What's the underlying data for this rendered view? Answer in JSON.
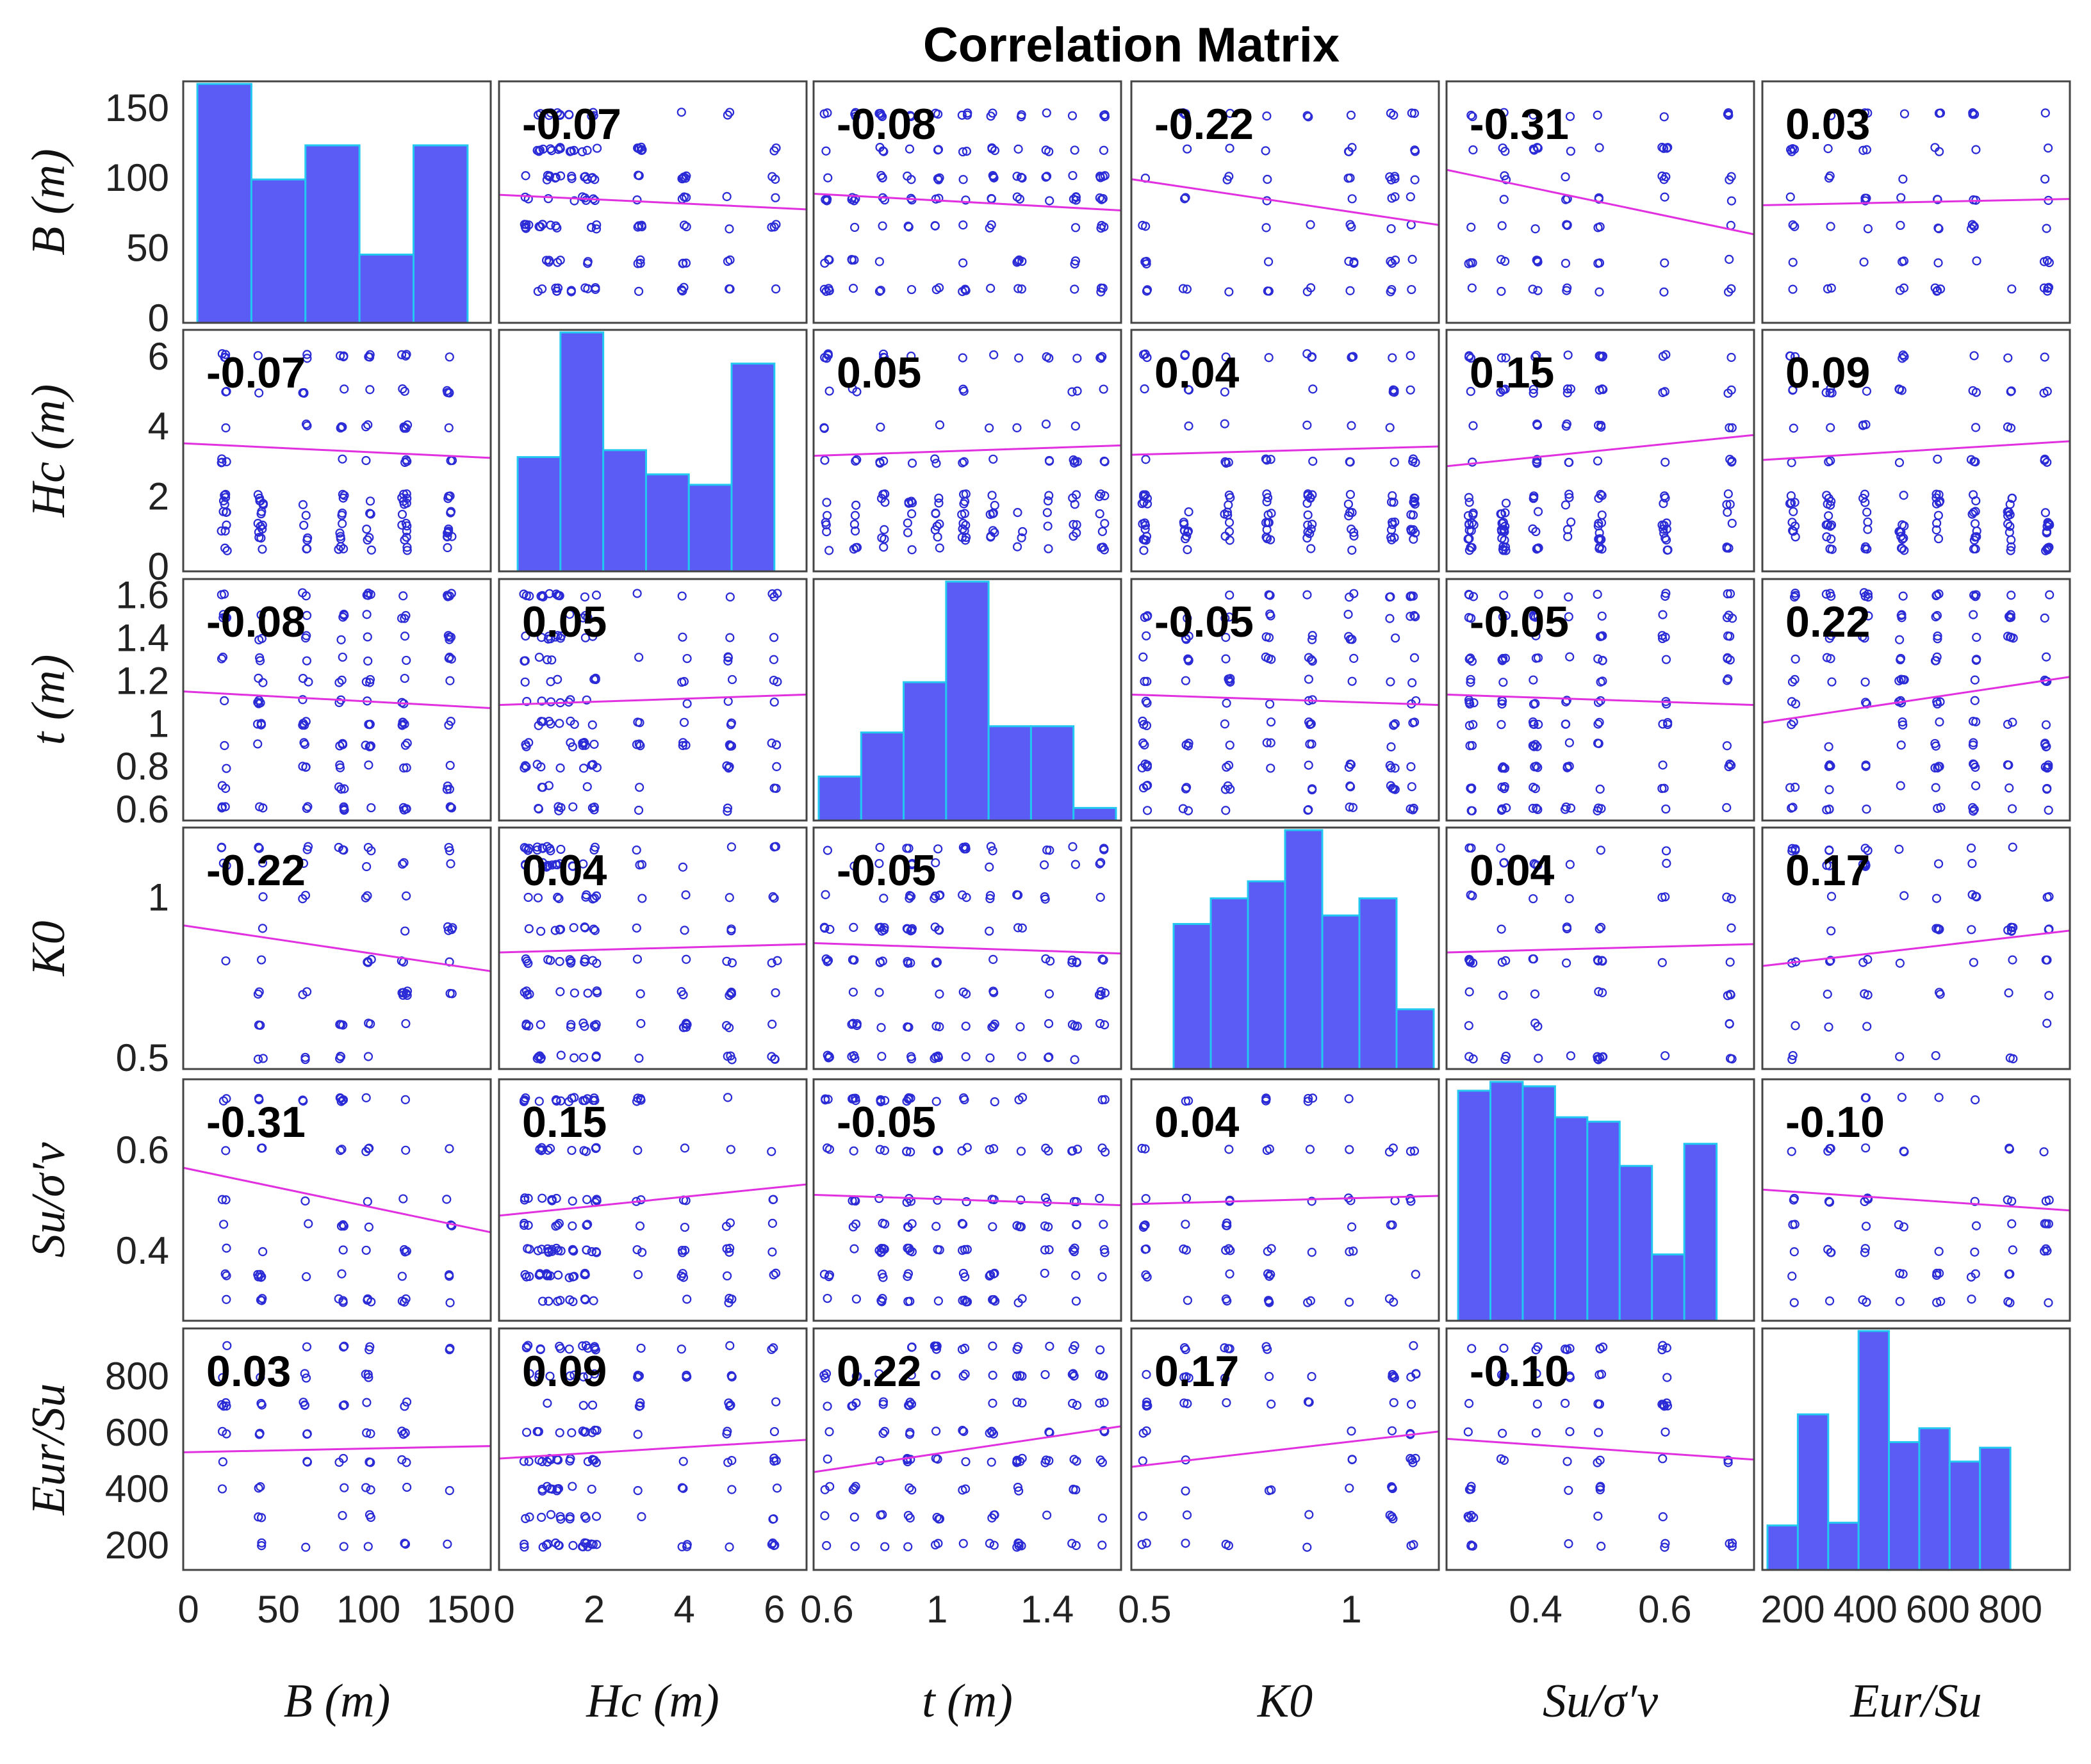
{
  "chart_data": {
    "type": "scatter-matrix",
    "title": "Correlation Matrix",
    "colors": {
      "marker": "#2a2ad6",
      "fit_line": "#e030e0",
      "hist_fill": "#5b5bf5",
      "hist_edge": "#22c8f0",
      "frame": "#444444"
    },
    "variables": [
      {
        "key": "B",
        "label": "B (m)",
        "range": [
          0,
          165
        ],
        "ticks": [
          0,
          50,
          100,
          150
        ],
        "values": [
          20,
          40,
          65,
          85,
          100,
          120,
          145
        ],
        "hist": {
          "range": [
            5,
            155
          ],
          "counts": [
            7,
            4.2,
            5.2,
            2.0,
            5.2
          ]
        }
      },
      {
        "key": "Hc",
        "label": "Hc (m)",
        "range": [
          0,
          6.6
        ],
        "ticks": [
          0,
          2,
          4,
          6
        ],
        "values": [
          0.5,
          0.8,
          1,
          1.2,
          1.5,
          1.8,
          2,
          3,
          4,
          5,
          6
        ],
        "hist": {
          "range": [
            0.3,
            6.0
          ],
          "counts": [
            3.3,
            6.9,
            3.5,
            2.8,
            2.5,
            6.0
          ]
        }
      },
      {
        "key": "t",
        "label": "t (m)",
        "range": [
          0.57,
          1.65
        ],
        "ticks": [
          0.6,
          0.8,
          1,
          1.2,
          1.4,
          1.6
        ],
        "tick_labels": [
          "0.6",
          "1",
          "1.4"
        ],
        "tick_label_values": [
          0.6,
          1.0,
          1.4
        ],
        "values": [
          0.6,
          0.7,
          0.8,
          0.9,
          1.0,
          1.1,
          1.2,
          1.3,
          1.4,
          1.5,
          1.6
        ],
        "hist": {
          "range": [
            0.57,
            1.65
          ],
          "counts": [
            0.7,
            1.4,
            2.2,
            3.8,
            1.5,
            1.5,
            0.2
          ]
        }
      },
      {
        "key": "K0",
        "label": "K0",
        "range": [
          0.48,
          1.2
        ],
        "ticks": [
          0.5,
          1
        ],
        "values": [
          0.5,
          0.6,
          0.7,
          0.8,
          0.9,
          1.0,
          1.1,
          1.15
        ],
        "hist": {
          "range": [
            0.57,
            1.2
          ],
          "counts": [
            1.7,
            2.0,
            2.2,
            2.8,
            1.8,
            2.0,
            0.7
          ]
        }
      },
      {
        "key": "Su",
        "label": "Su/σ′v",
        "range": [
          0.27,
          0.73
        ],
        "ticks": [
          0.4,
          0.6
        ],
        "values": [
          0.3,
          0.35,
          0.4,
          0.45,
          0.5,
          0.6,
          0.7
        ],
        "hist": {
          "range": [
            0.28,
            0.68
          ],
          "counts": [
            5.2,
            5.4,
            5.3,
            4.6,
            4.5,
            3.5,
            1.5,
            4.0
          ]
        }
      },
      {
        "key": "Eur",
        "label": "Eur/Su",
        "range": [
          130,
          950
        ],
        "ticks": [
          200,
          400,
          600,
          800
        ],
        "values": [
          200,
          300,
          400,
          500,
          600,
          700,
          800,
          900
        ],
        "hist": {
          "range": [
            130,
            800
          ],
          "counts": [
            1.6,
            5.6,
            1.7,
            8.6,
            4.6,
            5.1,
            3.9,
            4.4
          ]
        }
      }
    ],
    "axis_tick_labels": {
      "x": [
        [
          "0",
          "50",
          "100",
          "150"
        ],
        [
          "0",
          "2",
          "4",
          "6"
        ],
        [
          "0.6",
          "1",
          "1.4"
        ],
        [
          "0.5",
          "1"
        ],
        [
          "0.4",
          "0.6"
        ],
        [
          "200",
          "400",
          "600",
          "800"
        ]
      ],
      "y": [
        [
          "0",
          "50",
          "100",
          "150"
        ],
        [
          "0",
          "2",
          "4",
          "6"
        ],
        [
          "0.6",
          "0.8",
          "1",
          "1.2",
          "1.4",
          "1.6"
        ],
        [
          "0.5",
          "1"
        ],
        [
          "0.4",
          "0.6"
        ],
        [
          "200",
          "400",
          "600",
          "800"
        ]
      ]
    },
    "correlations": [
      [
        null,
        -0.07,
        -0.08,
        -0.22,
        -0.31,
        0.03
      ],
      [
        -0.07,
        null,
        0.05,
        0.04,
        0.15,
        0.09
      ],
      [
        -0.08,
        0.05,
        null,
        -0.05,
        -0.05,
        0.22
      ],
      [
        -0.22,
        0.04,
        -0.05,
        null,
        0.04,
        0.17
      ],
      [
        -0.31,
        0.15,
        -0.05,
        0.04,
        null,
        -0.1
      ],
      [
        0.03,
        0.09,
        0.22,
        0.17,
        -0.1,
        null
      ]
    ],
    "correlation_labels": [
      [
        null,
        "-0.07",
        "-0.08",
        "-0.22",
        "-0.31",
        "0.03"
      ],
      [
        "-0.07",
        null,
        "0.05",
        "0.04",
        "0.15",
        "0.09"
      ],
      [
        "-0.08",
        "0.05",
        null,
        "-0.05",
        "-0.05",
        "0.22"
      ],
      [
        "-0.22",
        "0.04",
        "-0.05",
        null,
        "0.04",
        "0.17"
      ],
      [
        "-0.31",
        "0.15",
        "-0.05",
        "0.04",
        null,
        "-0.10"
      ],
      [
        "0.03",
        "0.09",
        "0.22",
        "0.17",
        "-0.10",
        null
      ]
    ]
  }
}
